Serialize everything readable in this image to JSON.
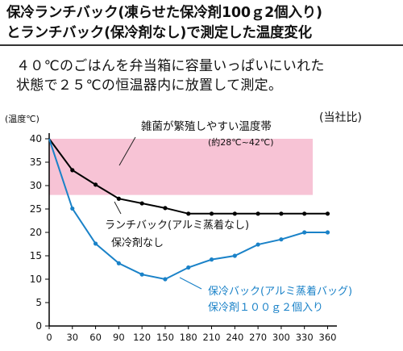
{
  "header": {
    "title_line1": "保冷ランチバック(凍らせた保冷剤100ｇ2個入り)",
    "title_line2": "とランチバック(保冷剤なし)で測定した温度変化",
    "description_line1": "４０℃のごはんを弁当箱に容量いっぱいにいれた",
    "description_line2": "状態で２５℃の恒温器内に放置して測定。"
  },
  "chart_data": {
    "type": "line",
    "ylabel": "(温度℃)",
    "note": "(当社比)",
    "x": [
      0,
      30,
      60,
      90,
      120,
      150,
      180,
      210,
      240,
      270,
      300,
      330,
      360
    ],
    "x_ticks": [
      0,
      30,
      60,
      90,
      120,
      150,
      180,
      210,
      240,
      270,
      300,
      330,
      360
    ],
    "y_ticks": [
      0,
      5,
      10,
      15,
      20,
      25,
      30,
      35,
      40
    ],
    "xlim": [
      0,
      372
    ],
    "ylim": [
      0,
      40
    ],
    "grid": false,
    "band": {
      "label": "雑菌が繁殖しやすい温度帯",
      "sublabel": "(約28℃~42℃)",
      "y_from": 28,
      "y_to": 42,
      "color": "#f7c3d5"
    },
    "series": [
      {
        "name_line1": "ランチバック(アルミ蒸着なし)",
        "name_line2": "保冷剤なし",
        "color": "#000000",
        "values": [
          40,
          33.3,
          30.2,
          27.2,
          26.2,
          25.2,
          24.0,
          24.0,
          24.0,
          24.0,
          24.0,
          24.0,
          24.0
        ]
      },
      {
        "name_line1": "保冷バック(アルミ蒸着バッグ)",
        "name_line2": "保冷剤１００ｇ２個入り",
        "color": "#1a82c8",
        "values": [
          40,
          25.1,
          17.6,
          13.4,
          11.0,
          10.0,
          12.5,
          14.2,
          15.0,
          17.4,
          18.5,
          20.0,
          20.0
        ]
      }
    ]
  }
}
